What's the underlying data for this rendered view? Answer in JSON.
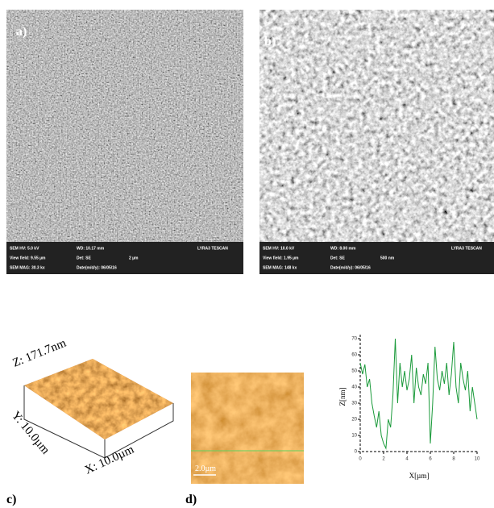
{
  "panels": [
    {
      "label": "a)",
      "info": [
        [
          "SEM HV: 5.0 kV",
          "WD: 10.17 mm",
          "LYRA3 TESCAN"
        ],
        [
          "View field: 9.55 µm",
          "Det: SE",
          "2 µm"
        ],
        [
          "SEM MAG: 30.3 kx",
          "Date(m/d/y): 06/05/16"
        ]
      ]
    },
    {
      "label": "b)",
      "info": [
        [
          "SEM HV: 10.0 kV",
          "WD: 8.00 mm",
          "LYRA3 TESCAN"
        ],
        [
          "View field: 1.95 µm",
          "Det: SE",
          "500 nm"
        ],
        [
          "SEM MAG: 148 kx",
          "Date(m/d/y): 06/05/16"
        ]
      ]
    },
    {
      "label": "c)",
      "z": "Z: 171.7nm",
      "y": "Y: 10.0µm",
      "x": "X: 10.0µm"
    },
    {
      "label": "d)",
      "scale": "2.0µm"
    }
  ],
  "chart_data": {
    "type": "line",
    "xlabel": "X[µm]",
    "ylabel": "Z[nm]",
    "color": "#1a9a3a",
    "x": [
      0,
      0.2,
      0.4,
      0.6,
      0.8,
      1,
      1.2,
      1.4,
      1.6,
      1.8,
      2,
      2.2,
      2.4,
      2.6,
      2.8,
      3,
      3.2,
      3.4,
      3.6,
      3.8,
      4,
      4.2,
      4.4,
      4.6,
      4.8,
      5,
      5.2,
      5.4,
      5.6,
      5.8,
      6,
      6.2,
      6.4,
      6.6,
      6.8,
      7,
      7.2,
      7.4,
      7.6,
      7.8,
      8,
      8.2,
      8.4,
      8.6,
      8.8,
      9,
      9.2,
      9.4,
      9.6,
      9.8,
      10
    ],
    "values": [
      55,
      48,
      54,
      40,
      45,
      30,
      22,
      15,
      25,
      10,
      5,
      2,
      20,
      15,
      35,
      70,
      30,
      55,
      40,
      50,
      38,
      45,
      60,
      30,
      52,
      40,
      35,
      48,
      42,
      55,
      5,
      30,
      65,
      45,
      38,
      50,
      42,
      55,
      35,
      48,
      68,
      40,
      30,
      55,
      45,
      38,
      50,
      25,
      40,
      30,
      20
    ],
    "xlim": [
      0,
      10
    ],
    "ylim": [
      0,
      70
    ],
    "xticks": [
      0,
      2,
      4,
      6,
      8,
      10
    ],
    "yticks": [
      0,
      10,
      20,
      30,
      40,
      50,
      60,
      70
    ]
  }
}
